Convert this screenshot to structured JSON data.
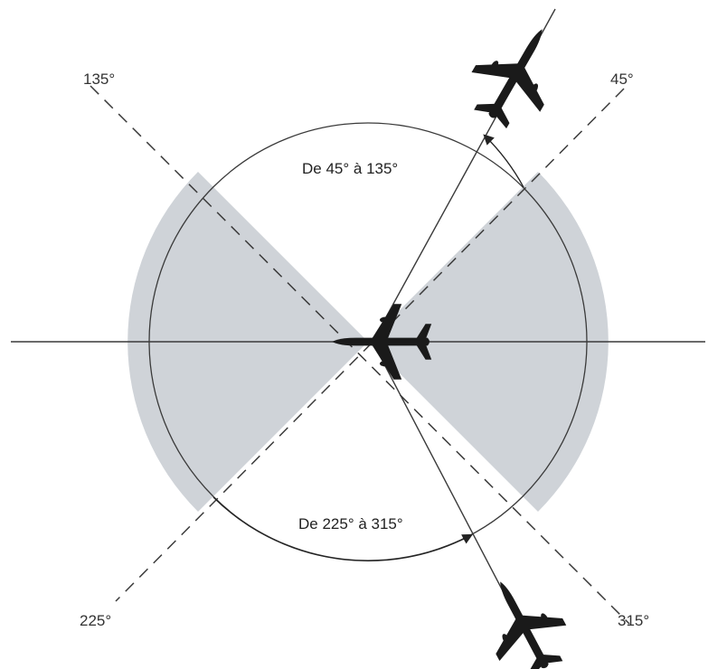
{
  "colors": {
    "background": "#ffffff",
    "sector_fill": "#cfd3d8",
    "line": "#3a3a3a",
    "aircraft": "#1a1a1a"
  },
  "labels": {
    "angle_135": "135°",
    "angle_45": "45°",
    "angle_225": "225°",
    "angle_315": "315°",
    "sector_upper": "De 45° à 135°",
    "sector_lower": "De 225° à 315°"
  },
  "icons": {
    "center_aircraft": "airplane-icon",
    "top_aircraft": "airplane-icon",
    "bottom_aircraft": "airplane-icon"
  }
}
